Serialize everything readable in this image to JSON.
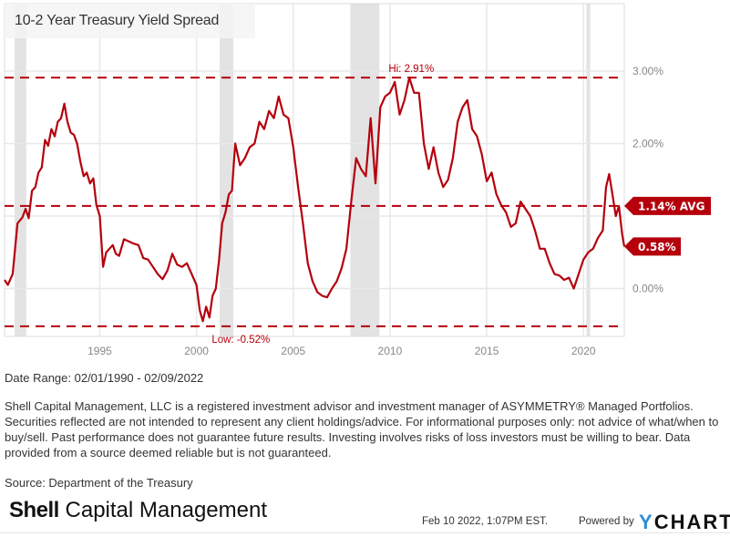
{
  "title": "10-2 Year Treasury Yield Spread",
  "chart_data": {
    "type": "line",
    "title": "10-2 Year Treasury Yield Spread",
    "xlabel": "",
    "ylabel": "",
    "xlim": [
      1990.08,
      2022.11
    ],
    "ylim": [
      -0.66,
      3.93
    ],
    "x_ticks": [
      1995,
      2000,
      2005,
      2010,
      2015,
      2020
    ],
    "x_tick_labels": [
      "1995",
      "2000",
      "2005",
      "2010",
      "2015",
      "2020"
    ],
    "y_ticks": [
      0,
      1,
      2,
      3
    ],
    "y_tick_labels": [
      "0.00%",
      "2.00%",
      "3.00%"
    ],
    "y_tick_label_map": {
      "0": "0.00%",
      "2": "2.00%",
      "3": "3.00%"
    },
    "grid": true,
    "legend": "none",
    "series": [
      {
        "name": "10-2 Year Treasury Yield Spread",
        "color": "#b5000c",
        "x": [
          1990.08,
          1990.25,
          1990.5,
          1990.75,
          1991.0,
          1991.17,
          1991.33,
          1991.5,
          1991.67,
          1991.83,
          1992.0,
          1992.17,
          1992.33,
          1992.5,
          1992.67,
          1992.83,
          1993.0,
          1993.17,
          1993.33,
          1993.5,
          1993.67,
          1993.83,
          1994.0,
          1994.17,
          1994.33,
          1994.5,
          1994.67,
          1994.83,
          1995.0,
          1995.17,
          1995.33,
          1995.5,
          1995.67,
          1995.83,
          1996.0,
          1996.25,
          1996.5,
          1996.75,
          1997.0,
          1997.25,
          1997.5,
          1997.75,
          1998.0,
          1998.25,
          1998.5,
          1998.75,
          1999.0,
          1999.25,
          1999.5,
          1999.75,
          2000.0,
          2000.17,
          2000.33,
          2000.5,
          2000.67,
          2000.83,
          2001.0,
          2001.17,
          2001.33,
          2001.5,
          2001.67,
          2001.83,
          2002.0,
          2002.25,
          2002.5,
          2002.75,
          2003.0,
          2003.25,
          2003.5,
          2003.75,
          2004.0,
          2004.25,
          2004.5,
          2004.75,
          2005.0,
          2005.25,
          2005.5,
          2005.75,
          2006.0,
          2006.25,
          2006.5,
          2006.75,
          2007.0,
          2007.25,
          2007.5,
          2007.75,
          2008.0,
          2008.25,
          2008.5,
          2008.75,
          2009.0,
          2009.25,
          2009.5,
          2009.75,
          2010.0,
          2010.25,
          2010.5,
          2010.75,
          2011.0,
          2011.25,
          2011.5,
          2011.75,
          2012.0,
          2012.25,
          2012.5,
          2012.75,
          2013.0,
          2013.25,
          2013.5,
          2013.75,
          2014.0,
          2014.25,
          2014.5,
          2014.75,
          2015.0,
          2015.25,
          2015.5,
          2015.75,
          2016.0,
          2016.25,
          2016.5,
          2016.75,
          2017.0,
          2017.25,
          2017.5,
          2017.75,
          2018.0,
          2018.25,
          2018.5,
          2018.75,
          2019.0,
          2019.25,
          2019.5,
          2019.75,
          2020.0,
          2020.25,
          2020.5,
          2020.75,
          2021.0,
          2021.17,
          2021.33,
          2021.5,
          2021.67,
          2021.83,
          2022.0,
          2022.11
        ],
        "y": [
          0.12,
          0.05,
          0.2,
          0.9,
          0.98,
          1.1,
          0.97,
          1.35,
          1.4,
          1.6,
          1.67,
          2.05,
          1.97,
          2.2,
          2.1,
          2.3,
          2.35,
          2.55,
          2.3,
          2.15,
          2.12,
          2.0,
          1.75,
          1.55,
          1.6,
          1.45,
          1.52,
          1.15,
          1.0,
          0.3,
          0.5,
          0.55,
          0.6,
          0.48,
          0.45,
          0.68,
          0.65,
          0.62,
          0.6,
          0.42,
          0.4,
          0.3,
          0.2,
          0.13,
          0.25,
          0.48,
          0.33,
          0.3,
          0.35,
          0.2,
          0.05,
          -0.3,
          -0.45,
          -0.25,
          -0.4,
          -0.1,
          0.0,
          0.4,
          0.9,
          1.05,
          1.3,
          1.35,
          2.0,
          1.7,
          1.8,
          1.95,
          2.0,
          2.3,
          2.2,
          2.45,
          2.35,
          2.65,
          2.4,
          2.35,
          1.95,
          1.4,
          0.9,
          0.35,
          0.1,
          -0.05,
          -0.1,
          -0.12,
          0.0,
          0.1,
          0.28,
          0.55,
          1.2,
          1.8,
          1.65,
          1.55,
          2.35,
          1.45,
          2.5,
          2.65,
          2.7,
          2.85,
          2.4,
          2.6,
          2.91,
          2.7,
          2.7,
          2.0,
          1.65,
          1.95,
          1.6,
          1.4,
          1.5,
          1.8,
          2.3,
          2.5,
          2.6,
          2.2,
          2.1,
          1.85,
          1.48,
          1.6,
          1.3,
          1.15,
          1.05,
          0.85,
          0.9,
          1.2,
          1.1,
          1.0,
          0.8,
          0.55,
          0.55,
          0.35,
          0.2,
          0.18,
          0.12,
          0.15,
          0.0,
          0.2,
          0.4,
          0.5,
          0.55,
          0.7,
          0.8,
          1.4,
          1.58,
          1.3,
          1.0,
          1.14,
          0.75,
          0.58
        ]
      }
    ],
    "reference_lines": [
      {
        "name": "high",
        "value": 2.91,
        "label": "Hi: 2.91%",
        "color": "#b5000c",
        "style": "dashed"
      },
      {
        "name": "average",
        "value": 1.14,
        "label": "1.14% AVG",
        "color": "#b5000c",
        "style": "dashed"
      },
      {
        "name": "low",
        "value": -0.52,
        "label": "Low: -0.52%",
        "color": "#b5000c",
        "style": "dashed"
      }
    ],
    "recessions": [
      {
        "start": 1990.6,
        "end": 1991.2
      },
      {
        "start": 2001.2,
        "end": 2001.9
      },
      {
        "start": 2007.95,
        "end": 2009.45
      },
      {
        "start": 2020.15,
        "end": 2020.35
      }
    ],
    "annotations": [
      {
        "text": "Hi: 2.91%",
        "x": 2011.1,
        "y": 2.91
      },
      {
        "text": "Low: -0.52%",
        "x": 2000.6,
        "y": -0.52
      }
    ],
    "last_value_label": "0.58%",
    "avg_label": "1.14% AVG"
  },
  "footer": {
    "date_range": "Date Range: 02/01/1990 - 02/09/2022",
    "disclaimer": "Shell Capital Management, LLC is a registered investment advisor and investment manager of ASYMMETRY® Managed Portfolios. Securities reflected are not intended to represent any client holdings/advice. For informational purposes only: not advice of what/when to buy/sell. Past performance does not guarantee future results. Investing involves risks of loss investors must be willing to bear. Data provided from a source deemed reliable but is not guaranteed.",
    "source": "Source: Department of the Treasury",
    "brand_bold": "Shell",
    "brand_rest": "Capital Management",
    "timestamp": "Feb 10 2022, 1:07PM EST.",
    "powered_by": "Powered by",
    "ycharts_y": "Y",
    "ycharts_rest": "CHARTS"
  }
}
